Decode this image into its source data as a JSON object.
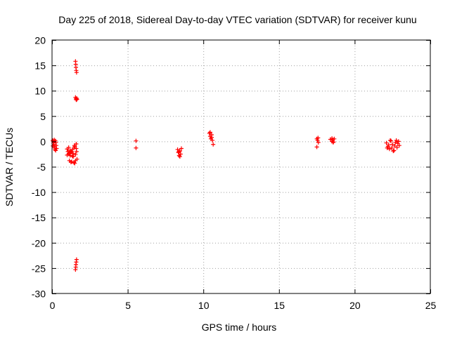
{
  "chart_data": {
    "type": "scatter",
    "title": "Day 225 of 2018, Sidereal Day-to-day VTEC variation (SDTVAR) for receiver kunu",
    "xlabel": "GPS time / hours",
    "ylabel": "SDTVAR / TECUs",
    "xlim": [
      0,
      25
    ],
    "ylim": [
      -30,
      20
    ],
    "xticks": [
      0,
      5,
      10,
      15,
      20,
      25
    ],
    "yticks": [
      20,
      15,
      10,
      5,
      0,
      -5,
      -10,
      -15,
      -20,
      -25,
      -30
    ],
    "xtick_labels": [
      "0",
      "5",
      "10",
      "15",
      "20",
      "25"
    ],
    "ytick_labels": [
      "20",
      "15",
      "10",
      "5",
      "0",
      "-5",
      "-10",
      "-15",
      "-20",
      "-25",
      "-30"
    ],
    "grid": true,
    "marker": "+",
    "colors": {
      "points": "#ff0000",
      "grid": "#a0a0a0",
      "axis": "#000000",
      "background": "#ffffff"
    },
    "series": [
      {
        "name": "SDTVAR",
        "points": [
          [
            0.05,
            0.2
          ],
          [
            0.1,
            -0.3
          ],
          [
            0.15,
            -1.0
          ],
          [
            0.2,
            -1.6
          ],
          [
            0.08,
            0.0
          ],
          [
            0.12,
            -0.6
          ],
          [
            0.18,
            -1.3
          ],
          [
            0.22,
            0.1
          ],
          [
            0.25,
            -0.2
          ],
          [
            0.28,
            -0.8
          ],
          [
            0.3,
            -1.4
          ],
          [
            0.06,
            -0.9
          ],
          [
            0.24,
            -1.8
          ],
          [
            0.15,
            0.3
          ],
          [
            1.0,
            -1.5
          ],
          [
            1.05,
            -2.0
          ],
          [
            1.1,
            -2.5
          ],
          [
            1.15,
            -3.8
          ],
          [
            1.2,
            -1.8
          ],
          [
            1.25,
            -2.2
          ],
          [
            1.3,
            -4.0
          ],
          [
            1.35,
            -1.6
          ],
          [
            1.4,
            -2.4
          ],
          [
            1.45,
            -4.2
          ],
          [
            1.5,
            -1.0
          ],
          [
            1.55,
            -2.6
          ],
          [
            1.6,
            -0.5
          ],
          [
            1.65,
            -3.5
          ],
          [
            1.1,
            -1.2
          ],
          [
            1.2,
            -2.8
          ],
          [
            1.3,
            -2.0
          ],
          [
            1.4,
            -3.0
          ],
          [
            1.5,
            -4.3
          ],
          [
            1.6,
            -1.4
          ],
          [
            1.0,
            -2.7
          ],
          [
            1.25,
            -4.1
          ],
          [
            1.45,
            -1.3
          ],
          [
            1.55,
            -3.8
          ],
          [
            1.35,
            -2.9
          ],
          [
            1.15,
            -2.3
          ],
          [
            1.62,
            -2.0
          ],
          [
            1.48,
            -0.8
          ],
          [
            1.55,
            15.8
          ],
          [
            1.57,
            15.2
          ],
          [
            1.58,
            14.6
          ],
          [
            1.6,
            14.0
          ],
          [
            1.62,
            13.6
          ],
          [
            1.55,
            8.7
          ],
          [
            1.58,
            8.4
          ],
          [
            1.6,
            8.2
          ],
          [
            1.63,
            8.5
          ],
          [
            1.65,
            8.3
          ],
          [
            1.55,
            -25.3
          ],
          [
            1.57,
            -24.8
          ],
          [
            1.58,
            -24.3
          ],
          [
            1.6,
            -23.8
          ],
          [
            1.62,
            -23.3
          ],
          [
            5.55,
            0.1
          ],
          [
            5.55,
            -1.3
          ],
          [
            8.3,
            -1.6
          ],
          [
            8.35,
            -2.2
          ],
          [
            8.4,
            -2.8
          ],
          [
            8.45,
            -1.9
          ],
          [
            8.5,
            -2.5
          ],
          [
            8.55,
            -1.4
          ],
          [
            8.45,
            -3.0
          ],
          [
            8.38,
            -2.0
          ],
          [
            10.4,
            1.6
          ],
          [
            10.45,
            1.0
          ],
          [
            10.5,
            0.5
          ],
          [
            10.55,
            1.3
          ],
          [
            10.6,
            0.2
          ],
          [
            10.65,
            -0.6
          ],
          [
            10.45,
            1.8
          ],
          [
            10.55,
            0.8
          ],
          [
            17.5,
            0.5
          ],
          [
            17.55,
            0.2
          ],
          [
            17.6,
            -0.2
          ],
          [
            17.5,
            -1.1
          ],
          [
            17.58,
            0.7
          ],
          [
            18.4,
            0.4
          ],
          [
            18.5,
            0.0
          ],
          [
            18.55,
            0.3
          ],
          [
            18.6,
            -0.1
          ],
          [
            18.65,
            0.5
          ],
          [
            18.5,
            0.6
          ],
          [
            18.58,
            -0.2
          ],
          [
            22.1,
            -0.3
          ],
          [
            22.2,
            -1.0
          ],
          [
            22.3,
            -1.5
          ],
          [
            22.4,
            0.1
          ],
          [
            22.5,
            -0.6
          ],
          [
            22.6,
            -1.8
          ],
          [
            22.7,
            -0.2
          ],
          [
            22.8,
            -1.2
          ],
          [
            22.9,
            0.0
          ],
          [
            22.25,
            -0.7
          ],
          [
            22.45,
            -1.3
          ],
          [
            22.65,
            -0.9
          ],
          [
            22.85,
            -0.4
          ],
          [
            22.35,
            0.2
          ],
          [
            22.55,
            -1.9
          ],
          [
            22.75,
            0.2
          ],
          [
            22.15,
            -1.3
          ],
          [
            22.95,
            -0.8
          ]
        ]
      }
    ]
  }
}
